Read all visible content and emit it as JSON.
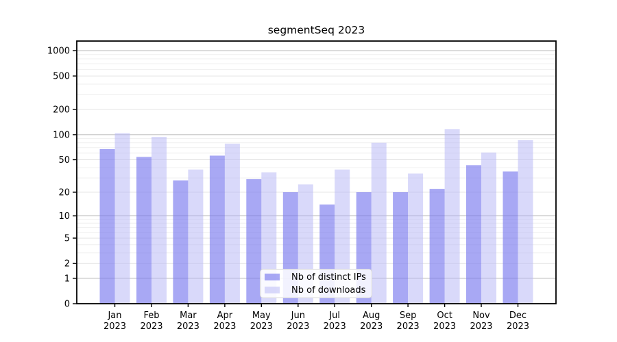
{
  "chart_data": {
    "type": "bar",
    "title": "segmentSeq 2023",
    "categories": [
      "Jan",
      "Feb",
      "Mar",
      "Apr",
      "May",
      "Jun",
      "Jul",
      "Aug",
      "Sep",
      "Oct",
      "Nov",
      "Dec"
    ],
    "category_year": "2023",
    "series": [
      {
        "name": "Nb of distinct IPs",
        "color": "#7979ee",
        "opacity": 0.65,
        "values": [
          67,
          54,
          28,
          56,
          29,
          20,
          14,
          20,
          20,
          22,
          43,
          36
        ]
      },
      {
        "name": "Nb of downloads",
        "color": "#b4b4f5",
        "opacity": 0.5,
        "values": [
          104,
          94,
          38,
          78,
          35,
          25,
          38,
          80,
          34,
          116,
          61,
          86
        ]
      }
    ],
    "yscale": "log1p",
    "ylim": [
      0,
      1300
    ],
    "yticks": [
      0,
      1,
      2,
      5,
      10,
      20,
      50,
      100,
      200,
      500,
      1000
    ],
    "decade_gridlines": [
      1,
      10,
      100,
      1000
    ],
    "mid_gridlines": [
      2,
      5,
      20,
      50,
      200,
      500
    ],
    "minor_gridlines": [
      3,
      4,
      6,
      7,
      8,
      9,
      30,
      40,
      60,
      70,
      80,
      90,
      300,
      400,
      600,
      700,
      800,
      900
    ],
    "grid": {
      "decade_color": "#b8b8b8",
      "mid_color": "#e4e4e4",
      "minor_color": "#efefef"
    },
    "axis_color": "#000000",
    "legend": {
      "position": "lower-center"
    }
  }
}
